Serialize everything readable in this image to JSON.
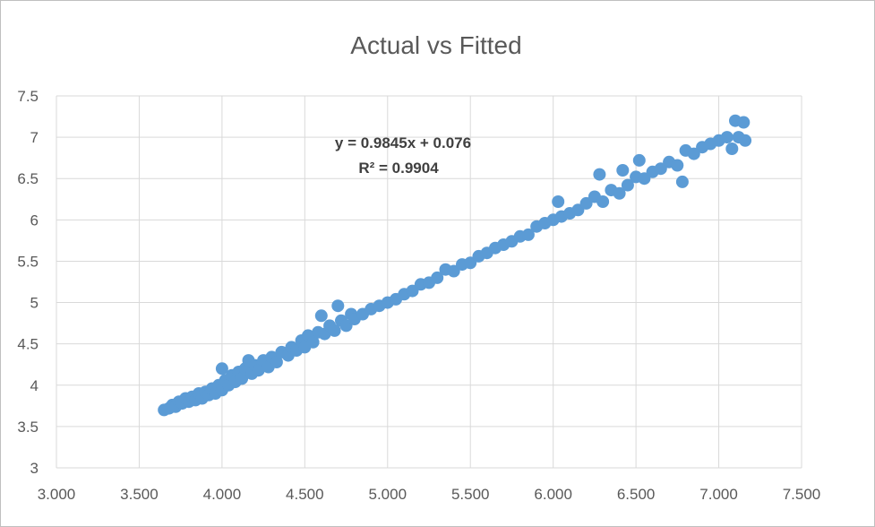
{
  "chart_data": {
    "type": "scatter",
    "title": "Actual vs Fitted",
    "xlabel": "",
    "ylabel": "",
    "xlim": [
      3.0,
      7.5
    ],
    "ylim": [
      3.0,
      7.5
    ],
    "x_ticks": [
      "3.000",
      "3.500",
      "4.000",
      "4.500",
      "5.000",
      "5.500",
      "6.000",
      "6.500",
      "7.000",
      "7.500"
    ],
    "y_ticks": [
      "3",
      "3.5",
      "4",
      "4.5",
      "5",
      "5.5",
      "6",
      "6.5",
      "7",
      "7.5"
    ],
    "grid": true,
    "color": "#5b9bd5",
    "trendline": {
      "equation": "y = 0.9845x + 0.076",
      "r_squared": "R² = 0.9904",
      "slope": 0.9845,
      "intercept": 0.076
    },
    "series": [
      {
        "points": [
          [
            3.65,
            3.7
          ],
          [
            3.68,
            3.72
          ],
          [
            3.7,
            3.76
          ],
          [
            3.72,
            3.74
          ],
          [
            3.74,
            3.8
          ],
          [
            3.76,
            3.78
          ],
          [
            3.78,
            3.84
          ],
          [
            3.8,
            3.8
          ],
          [
            3.82,
            3.86
          ],
          [
            3.84,
            3.82
          ],
          [
            3.86,
            3.9
          ],
          [
            3.88,
            3.84
          ],
          [
            3.9,
            3.92
          ],
          [
            3.92,
            3.88
          ],
          [
            3.94,
            3.96
          ],
          [
            3.96,
            3.9
          ],
          [
            3.98,
            4.0
          ],
          [
            4.0,
            3.94
          ],
          [
            4.0,
            4.2
          ],
          [
            4.02,
            4.06
          ],
          [
            4.04,
            4.0
          ],
          [
            4.06,
            4.12
          ],
          [
            4.08,
            4.04
          ],
          [
            4.1,
            4.16
          ],
          [
            4.12,
            4.08
          ],
          [
            4.14,
            4.2
          ],
          [
            4.16,
            4.3
          ],
          [
            4.18,
            4.14
          ],
          [
            4.2,
            4.24
          ],
          [
            4.22,
            4.18
          ],
          [
            4.25,
            4.3
          ],
          [
            4.28,
            4.22
          ],
          [
            4.3,
            4.34
          ],
          [
            4.33,
            4.28
          ],
          [
            4.36,
            4.4
          ],
          [
            4.4,
            4.36
          ],
          [
            4.42,
            4.46
          ],
          [
            4.45,
            4.42
          ],
          [
            4.48,
            4.54
          ],
          [
            4.5,
            4.46
          ],
          [
            4.52,
            4.6
          ],
          [
            4.55,
            4.52
          ],
          [
            4.58,
            4.64
          ],
          [
            4.6,
            4.84
          ],
          [
            4.62,
            4.62
          ],
          [
            4.65,
            4.72
          ],
          [
            4.68,
            4.66
          ],
          [
            4.7,
            4.96
          ],
          [
            4.72,
            4.78
          ],
          [
            4.75,
            4.72
          ],
          [
            4.78,
            4.86
          ],
          [
            4.8,
            4.8
          ],
          [
            4.85,
            4.86
          ],
          [
            4.9,
            4.92
          ],
          [
            4.95,
            4.96
          ],
          [
            5.0,
            5.0
          ],
          [
            5.05,
            5.04
          ],
          [
            5.1,
            5.1
          ],
          [
            5.15,
            5.14
          ],
          [
            5.2,
            5.22
          ],
          [
            5.25,
            5.24
          ],
          [
            5.3,
            5.3
          ],
          [
            5.35,
            5.4
          ],
          [
            5.4,
            5.38
          ],
          [
            5.45,
            5.46
          ],
          [
            5.5,
            5.48
          ],
          [
            5.55,
            5.56
          ],
          [
            5.6,
            5.6
          ],
          [
            5.65,
            5.66
          ],
          [
            5.7,
            5.7
          ],
          [
            5.75,
            5.74
          ],
          [
            5.8,
            5.8
          ],
          [
            5.85,
            5.82
          ],
          [
            5.9,
            5.92
          ],
          [
            5.95,
            5.96
          ],
          [
            6.0,
            6.0
          ],
          [
            6.03,
            6.22
          ],
          [
            6.05,
            6.04
          ],
          [
            6.1,
            6.08
          ],
          [
            6.15,
            6.12
          ],
          [
            6.2,
            6.2
          ],
          [
            6.25,
            6.28
          ],
          [
            6.28,
            6.55
          ],
          [
            6.3,
            6.22
          ],
          [
            6.35,
            6.36
          ],
          [
            6.4,
            6.32
          ],
          [
            6.42,
            6.6
          ],
          [
            6.45,
            6.42
          ],
          [
            6.5,
            6.52
          ],
          [
            6.52,
            6.72
          ],
          [
            6.55,
            6.5
          ],
          [
            6.6,
            6.58
          ],
          [
            6.65,
            6.62
          ],
          [
            6.7,
            6.7
          ],
          [
            6.75,
            6.66
          ],
          [
            6.78,
            6.46
          ],
          [
            6.8,
            6.84
          ],
          [
            6.85,
            6.8
          ],
          [
            6.9,
            6.88
          ],
          [
            6.95,
            6.92
          ],
          [
            7.0,
            6.96
          ],
          [
            7.05,
            7.0
          ],
          [
            7.08,
            6.86
          ],
          [
            7.1,
            7.2
          ],
          [
            7.12,
            7.0
          ],
          [
            7.15,
            7.18
          ],
          [
            7.16,
            6.96
          ]
        ]
      }
    ]
  }
}
